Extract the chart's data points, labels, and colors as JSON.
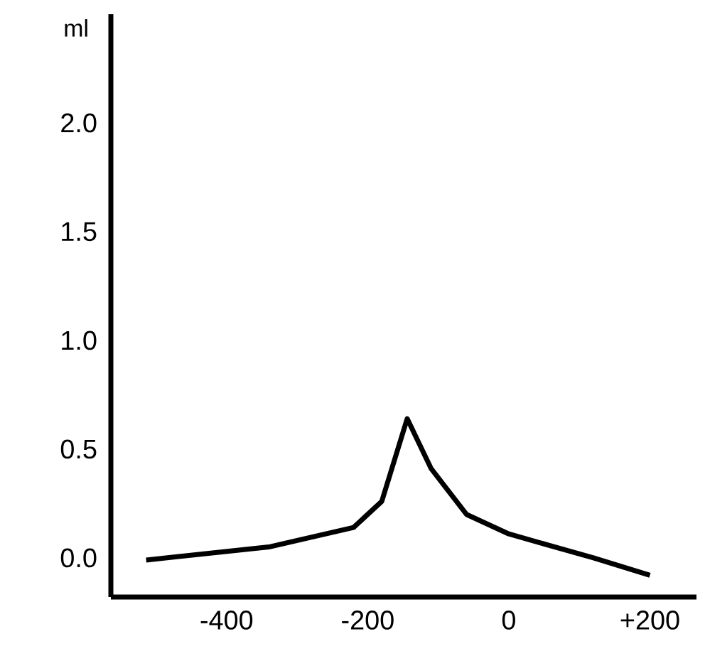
{
  "chart_data": {
    "type": "line",
    "ylabel": "ml",
    "x": [
      -514,
      -340,
      -220,
      -180,
      -144,
      -110,
      -60,
      0,
      120,
      200
    ],
    "values": [
      -0.01,
      0.05,
      0.14,
      0.26,
      0.64,
      0.41,
      0.2,
      0.11,
      0.0,
      -0.08
    ],
    "color": "#000000",
    "xlim": [
      -564,
      266
    ],
    "ylim": [
      -0.18,
      2.5
    ],
    "xticks": [
      -400,
      -200,
      0,
      {
        "value": 200,
        "label": "+200"
      }
    ],
    "yticks": [
      {
        "value": 0,
        "label": "0.0"
      },
      {
        "value": 0.5,
        "label": "0.5"
      },
      {
        "value": 1,
        "label": "1.0"
      },
      {
        "value": 1.5,
        "label": "1.5"
      },
      {
        "value": 2,
        "label": "2.0"
      }
    ],
    "marker": "none",
    "line_style": "solid"
  }
}
